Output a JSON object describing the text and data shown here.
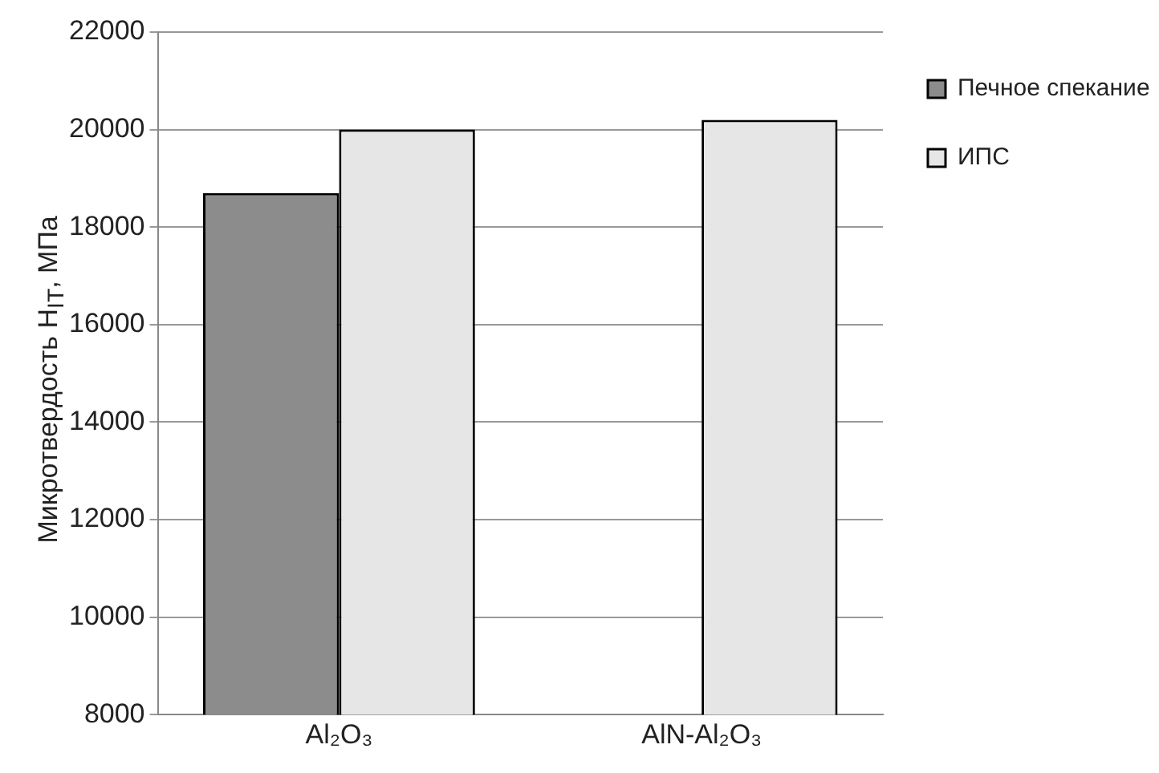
{
  "chart_data": {
    "type": "bar",
    "ylabel": "Микротвердость H$_{IT}$, МПа",
    "categories": [
      "Al₂O₃",
      "AlN-Al₂O₃"
    ],
    "series": [
      {
        "name": "Печное спекание",
        "color": "#8c8c8c",
        "values": [
          18700,
          null
        ]
      },
      {
        "name": "ИПС",
        "color": "#e6e6e6",
        "values": [
          20000,
          20200
        ]
      }
    ],
    "ylim": [
      8000,
      22000
    ],
    "yticks": [
      8000,
      10000,
      12000,
      14000,
      16000,
      18000,
      20000,
      22000
    ],
    "grid": "y",
    "legend": "right"
  }
}
